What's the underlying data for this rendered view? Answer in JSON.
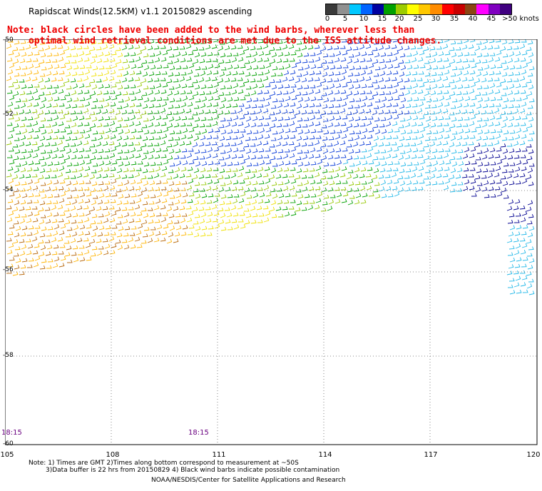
{
  "header": {
    "title": "Rapidscat Winds(12.5KM) v1.1 20150829 ascending",
    "note_line1": "Note: black circles have been added to the wind barbs, wherever less than",
    "note_line2": "optimal wind retrieval conditions are met due to the ISS attitude changes."
  },
  "legend": {
    "labels": [
      "0",
      "5",
      "10",
      "15",
      "20",
      "25",
      "30",
      "35",
      "40",
      "45",
      ">50 knots"
    ],
    "colors": [
      "#3a3a3a",
      "#909090",
      "#00c8ff",
      "#0064ff",
      "#0000a0",
      "#00a000",
      "#9ccc00",
      "#ffff00",
      "#ffc800",
      "#ff8c00",
      "#ff0000",
      "#c80000",
      "#8b4513",
      "#ff00ff",
      "#8000c0",
      "#400080"
    ]
  },
  "axes": {
    "lat_labels": [
      "-50",
      "-52",
      "-54",
      "-56",
      "-58",
      "-60"
    ],
    "lon_labels": [
      "105",
      "108",
      "111",
      "114",
      "117",
      "120"
    ]
  },
  "times": {
    "left": "18:15",
    "right": "18:15"
  },
  "footer": {
    "line1": "Note: 1) Times are GMT 2)Times along bottom correspond to measurement at ~50S",
    "line2": "3)Data buffer is 22 hrs from 20150829 4) Black wind barbs indicate possible contamination",
    "line3": "NOAA/NESDIS/Center for Satellite Applications and Research"
  }
}
